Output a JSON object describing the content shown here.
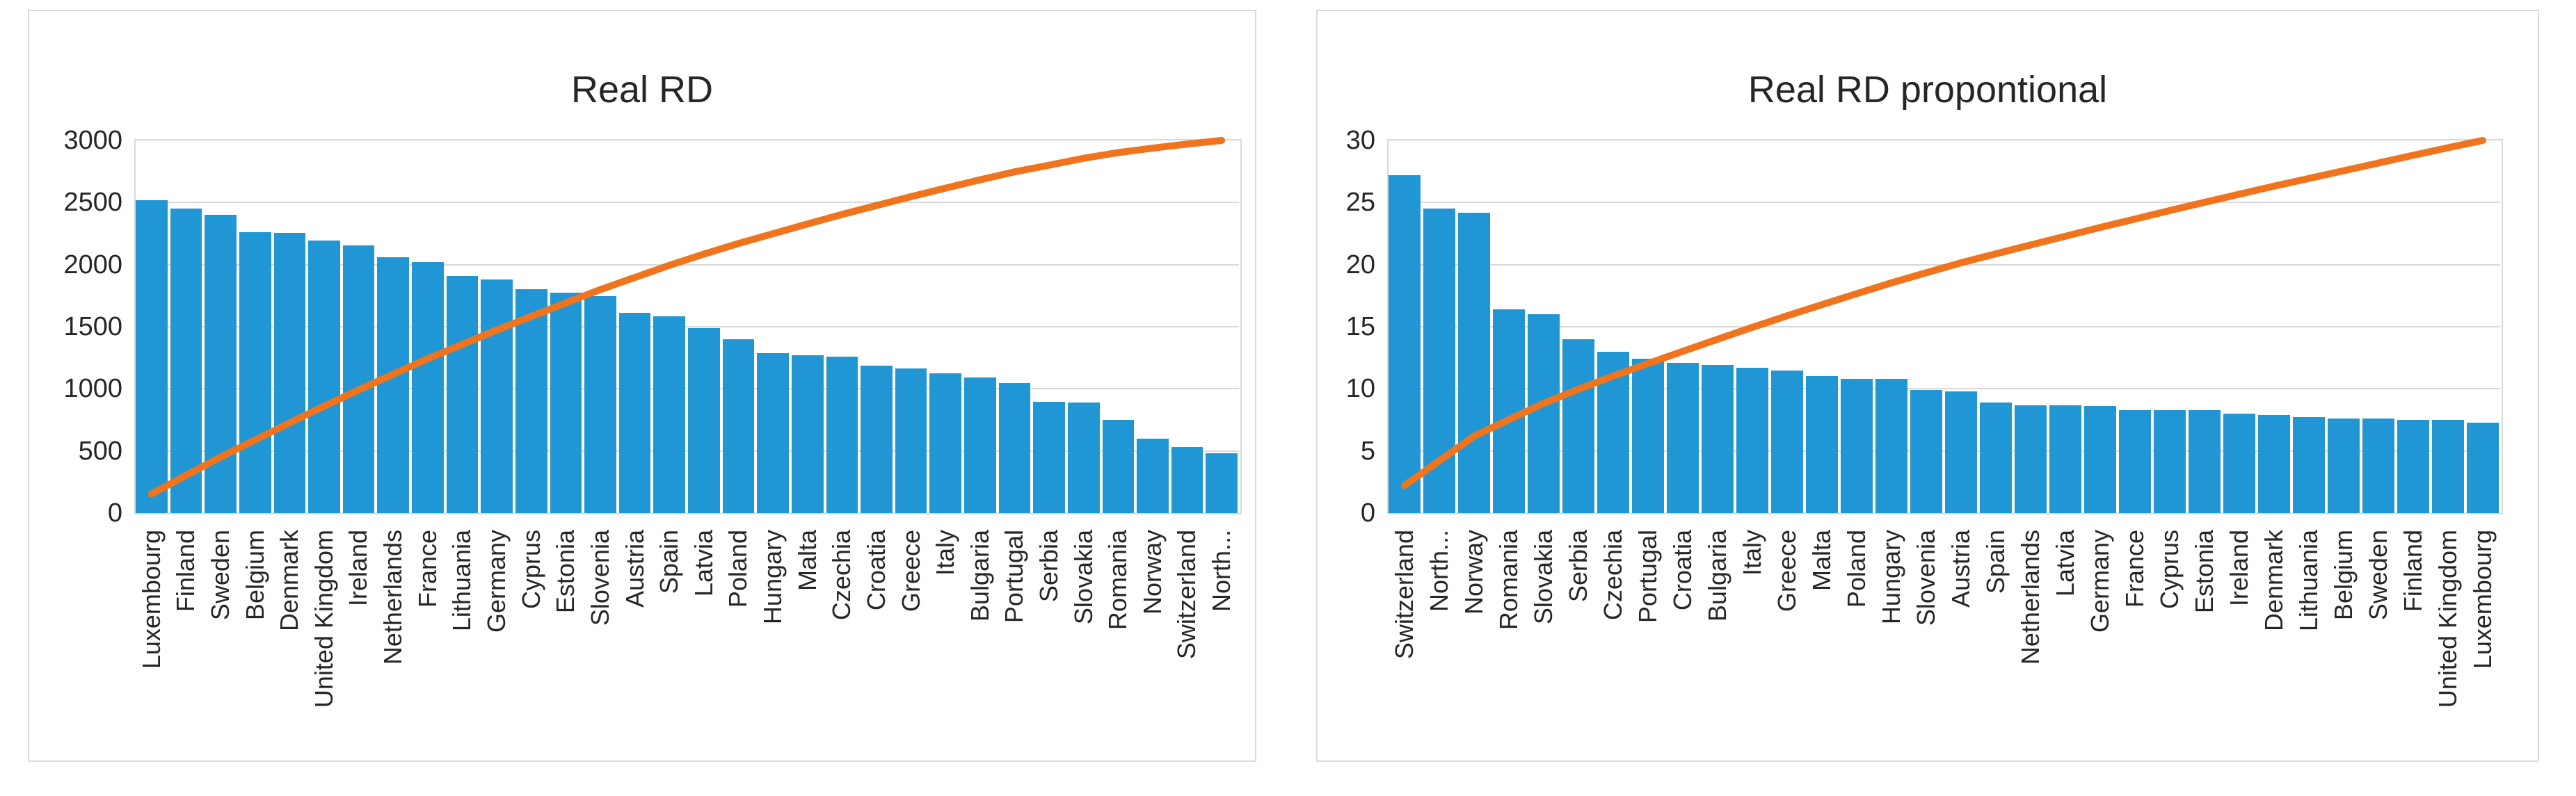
{
  "figure": {
    "description": "Two side-by-side Pareto charts: descending blue bars with an orange cumulative-percentage line scaled to the axis maximum.",
    "background": "#FFFFFF"
  },
  "colors": {
    "bar": "#2096D4",
    "cumulative_line": "#F0741D",
    "gridline": "#D9D9D9",
    "axis_text": "#262626",
    "title_text": "#262626",
    "panel_border": "#D9D9D9",
    "panel_background": "#FFFFFF"
  },
  "chart_data": [
    {
      "type": "bar",
      "subtype": "pareto-bar-with-cumulative-line",
      "title": "Real RD",
      "xlabel": "",
      "ylabel": "",
      "ylim": [
        0,
        3000
      ],
      "y_ticks": [
        0,
        500,
        1000,
        1500,
        2000,
        2500,
        3000
      ],
      "grid": "horizontal",
      "legend_position": "none",
      "x_label_rotation_degrees": 90,
      "categories": [
        "Luxembourg",
        "Finland",
        "Sweden",
        "Belgium",
        "Denmark",
        "United Kingdom",
        "Ireland",
        "Netherlands",
        "France",
        "Lithuania",
        "Germany",
        "Cyprus",
        "Estonia",
        "Slovenia",
        "Austria",
        "Spain",
        "Latvia",
        "Poland",
        "Hungary",
        "Malta",
        "Czechia",
        "Croatia",
        "Greece",
        "Italy",
        "Bulgaria",
        "Portugal",
        "Serbia",
        "Slovakia",
        "Romania",
        "Norway",
        "Switzerland",
        "North..."
      ],
      "series": [
        {
          "name": "Real RD bars",
          "type": "bar",
          "values": [
            2520,
            2450,
            2400,
            2260,
            2255,
            2195,
            2155,
            2060,
            2020,
            1910,
            1880,
            1805,
            1775,
            1745,
            1610,
            1585,
            1490,
            1400,
            1290,
            1270,
            1260,
            1185,
            1165,
            1125,
            1090,
            1045,
            895,
            890,
            750,
            600,
            530,
            480
          ]
        },
        {
          "name": "Cumulative share (scaled to axis max 3000)",
          "type": "line",
          "values": [
            154,
            304,
            450,
            588,
            726,
            860,
            992,
            1118,
            1242,
            1358,
            1473,
            1583,
            1692,
            1799,
            1897,
            1994,
            2085,
            2170,
            2249,
            2327,
            2404,
            2476,
            2547,
            2616,
            2683,
            2747,
            2801,
            2856,
            2902,
            2938,
            2971,
            3000
          ]
        }
      ]
    },
    {
      "type": "bar",
      "subtype": "pareto-bar-with-cumulative-line",
      "title": "Real RD propontional",
      "xlabel": "",
      "ylabel": "",
      "ylim": [
        0,
        30
      ],
      "y_ticks": [
        0,
        5,
        10,
        15,
        20,
        25,
        30
      ],
      "grid": "horizontal",
      "legend_position": "none",
      "x_label_rotation_degrees": 90,
      "categories": [
        "Switzerland",
        "North...",
        "Norway",
        "Romania",
        "Slovakia",
        "Serbia",
        "Czechia",
        "Portugal",
        "Croatia",
        "Bulgaria",
        "Italy",
        "Greece",
        "Malta",
        "Poland",
        "Hungary",
        "Slovenia",
        "Austria",
        "Spain",
        "Netherlands",
        "Latvia",
        "Germany",
        "France",
        "Cyprus",
        "Estonia",
        "Ireland",
        "Denmark",
        "Lithuania",
        "Belgium",
        "Sweden",
        "Finland",
        "United Kingdom",
        "Luxembourg"
      ],
      "series": [
        {
          "name": "Real RD proportional bars",
          "type": "bar",
          "values": [
            27.2,
            24.5,
            24.2,
            16.4,
            16.0,
            14.0,
            13.0,
            12.4,
            12.1,
            11.9,
            11.7,
            11.5,
            11.0,
            10.8,
            10.8,
            9.9,
            9.8,
            8.9,
            8.7,
            8.7,
            8.6,
            8.3,
            8.3,
            8.3,
            8.0,
            7.9,
            7.7,
            7.6,
            7.6,
            7.5,
            7.5,
            7.3
          ]
        },
        {
          "name": "Cumulative share (scaled to axis max 30)",
          "type": "line",
          "values": [
            2.22,
            4.21,
            6.19,
            7.52,
            8.83,
            9.97,
            11.03,
            12.04,
            13.02,
            13.99,
            14.95,
            15.88,
            16.78,
            17.66,
            18.54,
            19.35,
            20.15,
            20.87,
            21.58,
            22.29,
            22.99,
            23.67,
            24.35,
            25.02,
            25.67,
            26.32,
            26.94,
            27.56,
            28.18,
            28.8,
            29.41,
            30.0
          ]
        }
      ]
    }
  ]
}
